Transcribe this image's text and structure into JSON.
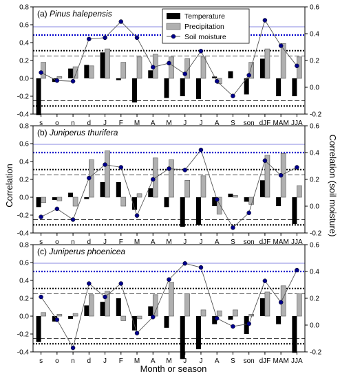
{
  "chart_data": {
    "type": "bar",
    "xlabel": "Month or season",
    "ylabel_left": "Correlation",
    "ylabel_right": "Correlation (soil moisture)",
    "categories": [
      "s",
      "o",
      "n",
      "d",
      "J",
      "F",
      "M",
      "A",
      "M",
      "J",
      "J",
      "A",
      "S",
      "son",
      "dJF",
      "MAM",
      "JJA"
    ],
    "ylim_left": [
      -0.4,
      0.8
    ],
    "ylim_right": [
      -0.2,
      0.6
    ],
    "left_ticks": [
      "-0.4",
      "-0.2",
      "0.0",
      "0.2",
      "0.4",
      "0.6",
      "0.8"
    ],
    "right_ticks": [
      "-0.2",
      "0.0",
      "0.2",
      "0.4",
      "0.6"
    ],
    "legend": {
      "temperature": "Temperature",
      "precipitation": "Precipitation",
      "soil": "Soil moisture"
    },
    "colors": {
      "temperature": "#000000",
      "precipitation": "#b0b0b0",
      "soil": "#00008b",
      "significance_soil": "#0000cc",
      "significance_tp": "#000000",
      "significance_p": "#444444"
    },
    "panels": [
      {
        "label_prefix": "(a) ",
        "label_species": "Pinus halepensis",
        "temperature": [
          -0.41,
          -0.04,
          0.11,
          0.15,
          0.29,
          -0.02,
          -0.27,
          0.09,
          -0.22,
          -0.2,
          -0.23,
          0.02,
          0.08,
          -0.18,
          0.22,
          -0.2,
          -0.2
        ],
        "precipitation": [
          0.18,
          0.02,
          0.13,
          0.14,
          0.33,
          0.18,
          0.24,
          0.27,
          0.24,
          0.22,
          0.24,
          -0.06,
          0.0,
          0.18,
          0.33,
          0.39,
          0.24
        ],
        "soil_moisture": [
          0.11,
          0.05,
          0.045,
          0.36,
          0.37,
          0.49,
          0.37,
          0.15,
          0.18,
          0.1,
          0.27,
          0.045,
          -0.065,
          0.09,
          0.5,
          0.31,
          0.16
        ],
        "sig_soil": 0.39,
        "sig_tp": [
          0.31,
          -0.31
        ],
        "sig_p": [
          0.25,
          -0.25
        ]
      },
      {
        "label_prefix": "(b) ",
        "label_species": "Juniperus thurifera",
        "temperature": [
          -0.11,
          -0.03,
          0.05,
          -0.02,
          0.17,
          0.17,
          -0.14,
          0.1,
          -0.11,
          -0.33,
          -0.31,
          -0.1,
          0.04,
          -0.05,
          0.19,
          -0.1,
          -0.3
        ],
        "precipitation": [
          -0.06,
          -0.04,
          -0.1,
          0.42,
          0.52,
          -0.1,
          0.04,
          0.44,
          0.42,
          0.19,
          0.24,
          -0.19,
          0.02,
          -0.08,
          0.47,
          0.49,
          0.13
        ],
        "soil_moisture": [
          -0.08,
          -0.02,
          -0.1,
          0.21,
          0.31,
          0.29,
          -0.07,
          0.2,
          0.28,
          0.27,
          0.42,
          0.05,
          -0.16,
          -0.05,
          0.34,
          0.23,
          0.29
        ],
        "sig_soil": 0.4,
        "sig_tp": [
          0.31,
          -0.31
        ],
        "sig_p": [
          0.25,
          -0.25
        ]
      },
      {
        "label_prefix": "(c) ",
        "label_species": "Juniperus phoenicea",
        "temperature": [
          -0.29,
          -0.06,
          -0.03,
          0.12,
          0.16,
          0.2,
          -0.16,
          0.11,
          -0.13,
          -0.48,
          -0.37,
          -0.09,
          -0.04,
          -0.2,
          0.2,
          -0.09,
          -0.41
        ],
        "precipitation": [
          0.04,
          0.02,
          0.03,
          0.24,
          0.28,
          -0.05,
          -0.03,
          0.24,
          0.38,
          0.25,
          0.07,
          0.06,
          0.07,
          0.02,
          0.27,
          0.34,
          0.25
        ],
        "soil_moisture": [
          0.21,
          0.04,
          -0.17,
          0.31,
          0.21,
          0.31,
          -0.06,
          0.06,
          0.34,
          0.46,
          0.43,
          0.05,
          -0.01,
          0.01,
          0.33,
          0.17,
          0.41
        ],
        "sig_soil": 0.4,
        "sig_tp": [
          0.31,
          -0.31
        ],
        "sig_p": [
          0.25,
          -0.25
        ]
      }
    ]
  }
}
